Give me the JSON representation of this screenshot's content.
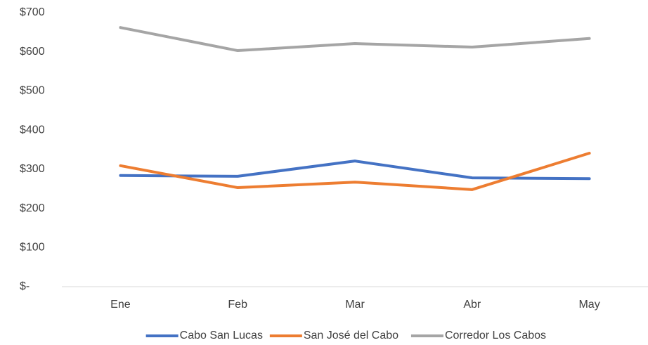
{
  "chart_data": {
    "type": "line",
    "categories": [
      "Ene",
      "Feb",
      "Mar",
      "Abr",
      "May"
    ],
    "series": [
      {
        "name": "Cabo San Lucas",
        "color": "#4472c4",
        "values": [
          284,
          282,
          321,
          278,
          276
        ]
      },
      {
        "name": "San José del Cabo",
        "color": "#ed7d31",
        "values": [
          309,
          253,
          267,
          248,
          341
        ]
      },
      {
        "name": "Corredor Los Cabos",
        "color": "#a5a5a5",
        "values": [
          662,
          603,
          621,
          612,
          634
        ]
      }
    ],
    "ylim": [
      0,
      700
    ],
    "yticks": [
      {
        "value": 0,
        "label": "$-"
      },
      {
        "value": 100,
        "label": "$100"
      },
      {
        "value": 200,
        "label": "$200"
      },
      {
        "value": 300,
        "label": "$300"
      },
      {
        "value": 400,
        "label": "$400"
      },
      {
        "value": 500,
        "label": "$500"
      },
      {
        "value": 600,
        "label": "$600"
      },
      {
        "value": 700,
        "label": "$700"
      }
    ],
    "grid": false,
    "legend": "bottom"
  }
}
